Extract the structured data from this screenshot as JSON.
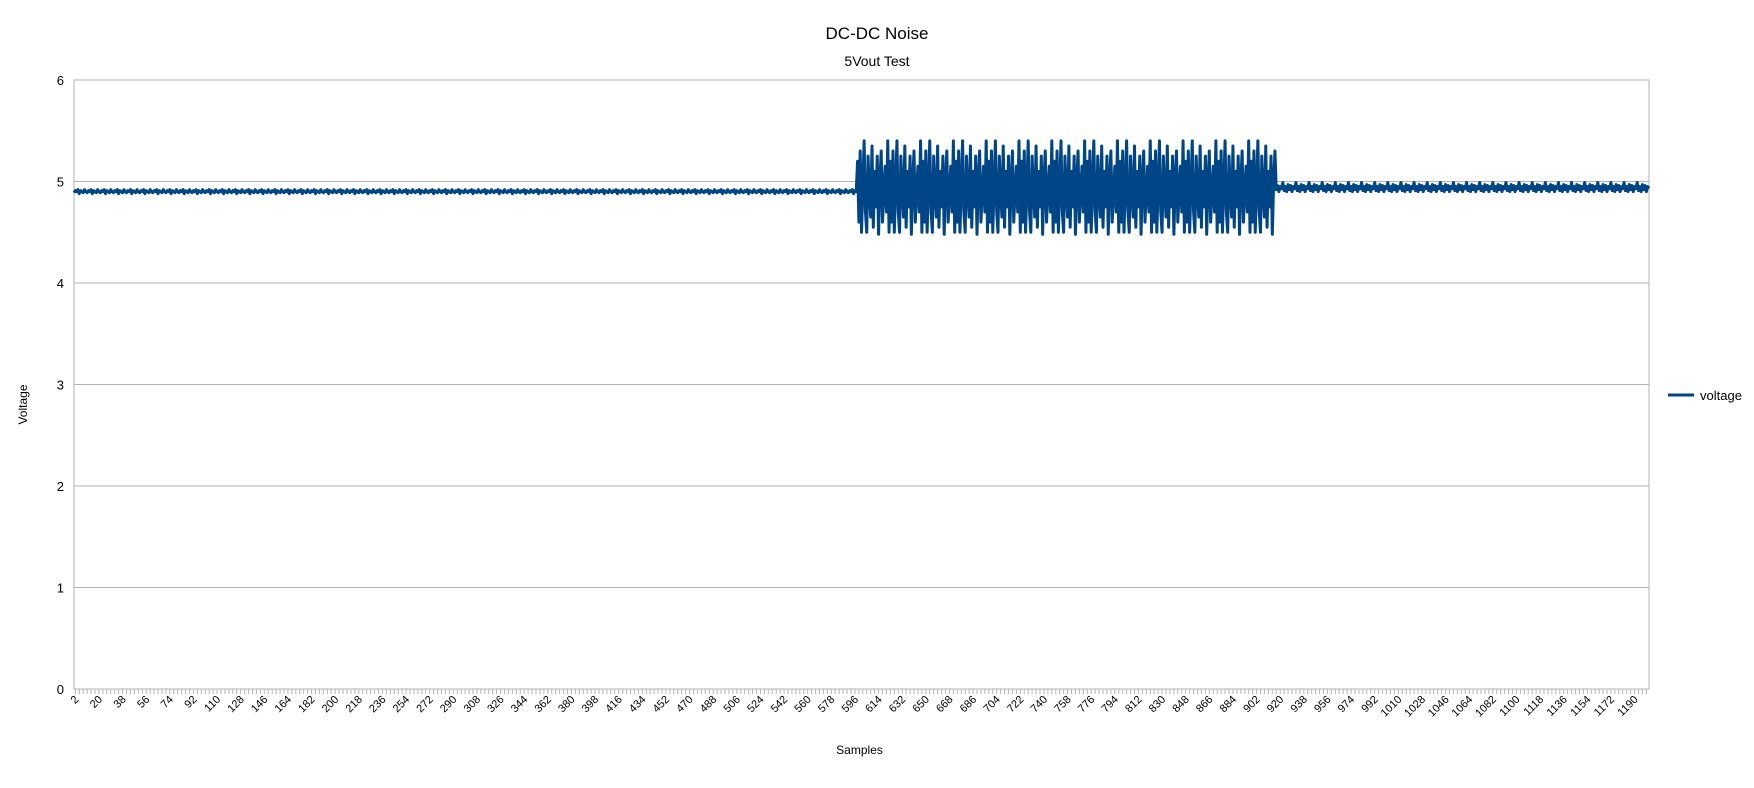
{
  "chart_data": {
    "type": "line",
    "title": "DC-DC Noise",
    "subtitle": "5Vout Test",
    "xlabel": "Samples",
    "ylabel": "Voltage",
    "ylim": [
      0,
      6
    ],
    "yticks": [
      0,
      1,
      2,
      3,
      4,
      5,
      6
    ],
    "xlim": [
      1,
      1201
    ],
    "xticks": [
      2,
      20,
      38,
      56,
      74,
      92,
      110,
      128,
      146,
      164,
      182,
      200,
      218,
      236,
      254,
      272,
      290,
      308,
      326,
      344,
      362,
      380,
      398,
      416,
      434,
      452,
      470,
      488,
      506,
      524,
      542,
      560,
      578,
      596,
      614,
      632,
      650,
      668,
      686,
      704,
      722,
      740,
      758,
      776,
      794,
      812,
      830,
      848,
      866,
      884,
      902,
      920,
      938,
      956,
      974,
      992,
      1010,
      1028,
      1046,
      1064,
      1082,
      1100,
      1118,
      1136,
      1154,
      1172,
      1190
    ],
    "grid": "horizontal",
    "legend": "right",
    "series": [
      {
        "name": "voltage",
        "color": "#004586",
        "segments": [
          {
            "x_start": 1,
            "x_end": 597,
            "pattern": [
              4.89,
              4.91,
              4.9,
              4.92,
              4.88,
              4.91,
              4.9,
              4.89,
              4.92,
              4.9
            ]
          },
          {
            "x_start": 598,
            "x_end": 916,
            "pattern": [
              5.2,
              4.6,
              5.3,
              4.5,
              4.95,
              5.4,
              4.7,
              4.5,
              5.25,
              4.9,
              4.65,
              5.35,
              4.55,
              5.1,
              4.75,
              5.25,
              4.48,
              5.0,
              5.3,
              4.6,
              4.9,
              5.15,
              4.7,
              5.4,
              4.5
            ]
          },
          {
            "x_start": 917,
            "x_end": 1201,
            "pattern": [
              4.92,
              4.96,
              4.9,
              4.95,
              4.93,
              4.99,
              4.91,
              4.95,
              4.9,
              4.97
            ]
          }
        ]
      }
    ]
  }
}
